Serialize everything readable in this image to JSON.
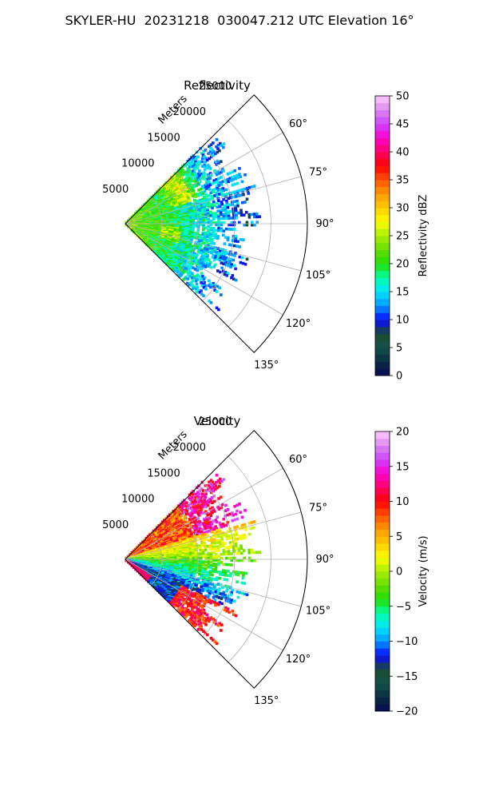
{
  "figure": {
    "suptitle": "SKYLER-HU  20231218  030047.212 UTC Elevation 16°"
  },
  "chart_data": [
    {
      "type": "heatmap",
      "projection": "polar-sector",
      "title": "Reflectivity",
      "radial_label": "Meters",
      "r_ticks": [
        5000,
        10000,
        15000,
        20000,
        25000
      ],
      "r_tick_labels": [
        "5000",
        "10000",
        "15000",
        "20000",
        "25000"
      ],
      "rlim": [
        0,
        25000
      ],
      "theta_ticks": [
        60,
        75,
        90,
        105,
        120,
        135
      ],
      "theta_tick_labels": [
        "60°",
        "75°",
        "90°",
        "105°",
        "120°",
        "135°"
      ],
      "theta_range_deg": [
        45,
        135
      ],
      "grid": true,
      "data_extent_m": 17000,
      "colorbar": {
        "label": "Reflectivity dBZ",
        "vmin": 0,
        "vmax": 50,
        "ticks": [
          0,
          5,
          10,
          15,
          20,
          25,
          30,
          35,
          40,
          45,
          50
        ],
        "tick_labels": [
          "0",
          "5",
          "10",
          "15",
          "20",
          "25",
          "30",
          "35",
          "40",
          "45",
          "50"
        ],
        "colormap": [
          "#0a0a55",
          "#0a2a40",
          "#14504a",
          "#1a4a2e",
          "#0a0aff",
          "#0099ff",
          "#00e5ff",
          "#00ffaa",
          "#22dd00",
          "#66dd00",
          "#aaee00",
          "#ffff00",
          "#ffcc00",
          "#ff9900",
          "#ff5500",
          "#ff0000",
          "#ff0066",
          "#ff00cc",
          "#cc44ff",
          "#dd88ee",
          "#ffccff"
        ]
      }
    },
    {
      "type": "heatmap",
      "projection": "polar-sector",
      "title": "Velocity",
      "radial_label": "Meters",
      "r_ticks": [
        5000,
        10000,
        15000,
        20000,
        25000
      ],
      "r_tick_labels": [
        "5000",
        "10000",
        "15000",
        "20000",
        "25000"
      ],
      "rlim": [
        0,
        25000
      ],
      "theta_ticks": [
        60,
        75,
        90,
        105,
        120,
        135
      ],
      "theta_tick_labels": [
        "60°",
        "75°",
        "90°",
        "105°",
        "120°",
        "135°"
      ],
      "theta_range_deg": [
        45,
        135
      ],
      "grid": true,
      "data_extent_m": 17000,
      "colorbar": {
        "label": "Velocity (m/s)",
        "vmin": -20,
        "vmax": 20,
        "ticks": [
          -20,
          -15,
          -10,
          -5,
          0,
          5,
          10,
          15,
          20
        ],
        "tick_labels": [
          "−20",
          "−15",
          "−10",
          "−5",
          "0",
          "5",
          "10",
          "15",
          "20"
        ],
        "colormap": [
          "#0a0a55",
          "#0a2a40",
          "#14504a",
          "#1a4a2e",
          "#0a0aff",
          "#0099ff",
          "#00e5ff",
          "#00ffaa",
          "#22dd00",
          "#66dd00",
          "#aaee00",
          "#ffff00",
          "#ffcc00",
          "#ff9900",
          "#ff5500",
          "#ff0000",
          "#ff0066",
          "#ff00cc",
          "#cc44ff",
          "#dd88ee",
          "#ffccff"
        ]
      }
    }
  ]
}
